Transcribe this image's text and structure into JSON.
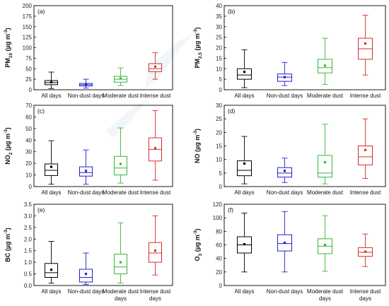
{
  "chart_data": [
    {
      "type": "box",
      "panel": "(a)",
      "ylabel": "PM10 (µg m⁻³)",
      "ylabel_parts": {
        "main": "PM",
        "sub": "10",
        "unit": " (µg m",
        "exp": "-3",
        "close": ")"
      },
      "ylim": [
        0,
        200
      ],
      "yticks": [
        "0",
        "25",
        "50",
        "75",
        "100",
        "125",
        "150",
        "175",
        "200"
      ],
      "categories": [
        "All days",
        "Non-dust days",
        "Moderate dust",
        "Intense dust"
      ],
      "series": [
        {
          "whisker_low": 3,
          "q1": 12,
          "median": 17,
          "q3": 22,
          "whisker_high": 42,
          "mean": 18
        },
        {
          "whisker_low": 4,
          "q1": 9,
          "median": 12,
          "q3": 15,
          "whisker_high": 25,
          "mean": 12
        },
        {
          "whisker_low": 10,
          "q1": 18,
          "median": 25,
          "q3": 32,
          "whisker_high": 52,
          "mean": 27
        },
        {
          "whisker_low": 25,
          "q1": 43,
          "median": 50,
          "q3": 62,
          "whisker_high": 88,
          "mean": 55
        }
      ]
    },
    {
      "type": "box",
      "panel": "(b)",
      "ylabel": "PM2.5 (µg m⁻³)",
      "ylabel_parts": {
        "main": "PM",
        "sub": "2.5",
        "unit": " (µg m",
        "exp": "-3",
        "close": ")"
      },
      "ylim": [
        0,
        40
      ],
      "yticks": [
        "0",
        "5",
        "10",
        "15",
        "20",
        "25",
        "30",
        "35",
        "40"
      ],
      "categories": [
        "All days",
        "Non-dust days",
        "Moderate dust",
        "Intense dust"
      ],
      "series": [
        {
          "whisker_low": 1,
          "q1": 5,
          "median": 7,
          "q3": 10,
          "whisker_high": 19,
          "mean": 8.5
        },
        {
          "whisker_low": 2,
          "q1": 4,
          "median": 6,
          "q3": 7.5,
          "whisker_high": 13,
          "mean": 6
        },
        {
          "whisker_low": 2.5,
          "q1": 8,
          "median": 10.5,
          "q3": 14.5,
          "whisker_high": 24.5,
          "mean": 11.5
        },
        {
          "whisker_low": 7,
          "q1": 14.5,
          "median": 19.5,
          "q3": 24.5,
          "whisker_high": 35.5,
          "mean": 22
        }
      ]
    },
    {
      "type": "box",
      "panel": "(c)",
      "ylabel": "NO2 (µg m⁻³)",
      "ylabel_parts": {
        "main": "NO",
        "sub": "2",
        "unit": " (µg m",
        "exp": "-3",
        "close": ")"
      },
      "ylim": [
        0,
        70
      ],
      "yticks": [
        "0",
        "10",
        "20",
        "30",
        "40",
        "50",
        "60",
        "70"
      ],
      "categories": [
        "All days",
        "Non-dust days",
        "Moderate dust",
        "Intense dust"
      ],
      "series": [
        {
          "whisker_low": 2,
          "q1": 9.5,
          "median": 14,
          "q3": 19.5,
          "whisker_high": 39.5,
          "mean": 17
        },
        {
          "whisker_low": 2,
          "q1": 9,
          "median": 12,
          "q3": 17,
          "whisker_high": 31.5,
          "mean": 13.5
        },
        {
          "whisker_low": 3,
          "q1": 10,
          "median": 16,
          "q3": 26,
          "whisker_high": 50.5,
          "mean": 19.5
        },
        {
          "whisker_low": 5.5,
          "q1": 22,
          "median": 32,
          "q3": 42,
          "whisker_high": 65.5,
          "mean": 33
        }
      ]
    },
    {
      "type": "box",
      "panel": "(d)",
      "ylabel": "NO (µg m⁻³)",
      "ylabel_parts": {
        "main": "NO",
        "sub": "",
        "unit": " (µg m",
        "exp": "-3",
        "close": ")"
      },
      "ylim": [
        0,
        30
      ],
      "yticks": [
        "0",
        "5",
        "10",
        "15",
        "20",
        "25",
        "30"
      ],
      "categories": [
        "All days",
        "Non-dust days",
        "Moderate dust",
        "Intense dust"
      ],
      "series": [
        {
          "whisker_low": 1,
          "q1": 4,
          "median": 6,
          "q3": 9.5,
          "whisker_high": 18.5,
          "mean": 8.5
        },
        {
          "whisker_low": 1.5,
          "q1": 3.5,
          "median": 5,
          "q3": 7,
          "whisker_high": 10.5,
          "mean": 5.8
        },
        {
          "whisker_low": 1,
          "q1": 3.5,
          "median": 5,
          "q3": 11.5,
          "whisker_high": 23,
          "mean": 9
        },
        {
          "whisker_low": 3,
          "q1": 8,
          "median": 11,
          "q3": 15,
          "whisker_high": 25,
          "mean": 13.5
        }
      ]
    },
    {
      "type": "box",
      "panel": "(e)",
      "ylabel": "BC (µg m⁻³)",
      "ylabel_parts": {
        "main": "BC",
        "sub": "",
        "unit": " (µg m",
        "exp": "-3",
        "close": ")"
      },
      "ylim": [
        0,
        3.5
      ],
      "yticks": [
        "0.0",
        "0.5",
        "1.0",
        "1.5",
        "2.0",
        "2.5",
        "3.0",
        "3.5"
      ],
      "categories": [
        "All days",
        "Non-dust days",
        "Moderate dust\ndays",
        "Intense dust\ndays"
      ],
      "series": [
        {
          "whisker_low": 0.1,
          "q1": 0.35,
          "median": 0.55,
          "q3": 0.95,
          "whisker_high": 1.9,
          "mean": 0.68
        },
        {
          "whisker_low": 0.05,
          "q1": 0.15,
          "median": 0.35,
          "q3": 0.7,
          "whisker_high": 1.4,
          "mean": 0.5
        },
        {
          "whisker_low": 0.1,
          "q1": 0.5,
          "median": 0.8,
          "q3": 1.35,
          "whisker_high": 2.7,
          "mean": 1.0
        },
        {
          "whisker_low": 0.45,
          "q1": 1.0,
          "median": 1.4,
          "q3": 1.85,
          "whisker_high": 3.0,
          "mean": 1.5
        }
      ]
    },
    {
      "type": "box",
      "panel": "(f)",
      "ylabel": "O3 (µg m⁻³)",
      "ylabel_parts": {
        "main": "O",
        "sub": "3",
        "unit": " (µg m",
        "exp": "-3",
        "close": ")"
      },
      "ylim": [
        0,
        120
      ],
      "yticks": [
        "0",
        "20",
        "40",
        "60",
        "80",
        "100",
        "120"
      ],
      "categories": [
        "All days",
        "Non-dust days",
        "Moderate dust\ndays",
        "Intense dust\ndays"
      ],
      "series": [
        {
          "whisker_low": 20,
          "q1": 48,
          "median": 60,
          "q3": 72,
          "whisker_high": 107,
          "mean": 61
        },
        {
          "whisker_low": 20,
          "q1": 51,
          "median": 62,
          "q3": 75,
          "whisker_high": 109,
          "mean": 63
        },
        {
          "whisker_low": 21,
          "q1": 47,
          "median": 58,
          "q3": 69,
          "whisker_high": 103,
          "mean": 60
        },
        {
          "whisker_low": 28,
          "q1": 43,
          "median": 49,
          "q3": 56,
          "whisker_high": 76,
          "mean": 50
        }
      ]
    }
  ],
  "colors": {
    "series": [
      "#000000",
      "#2020d0",
      "#39b539",
      "#d03028"
    ],
    "axis": "#000000",
    "watermark": "#e6eef7"
  }
}
